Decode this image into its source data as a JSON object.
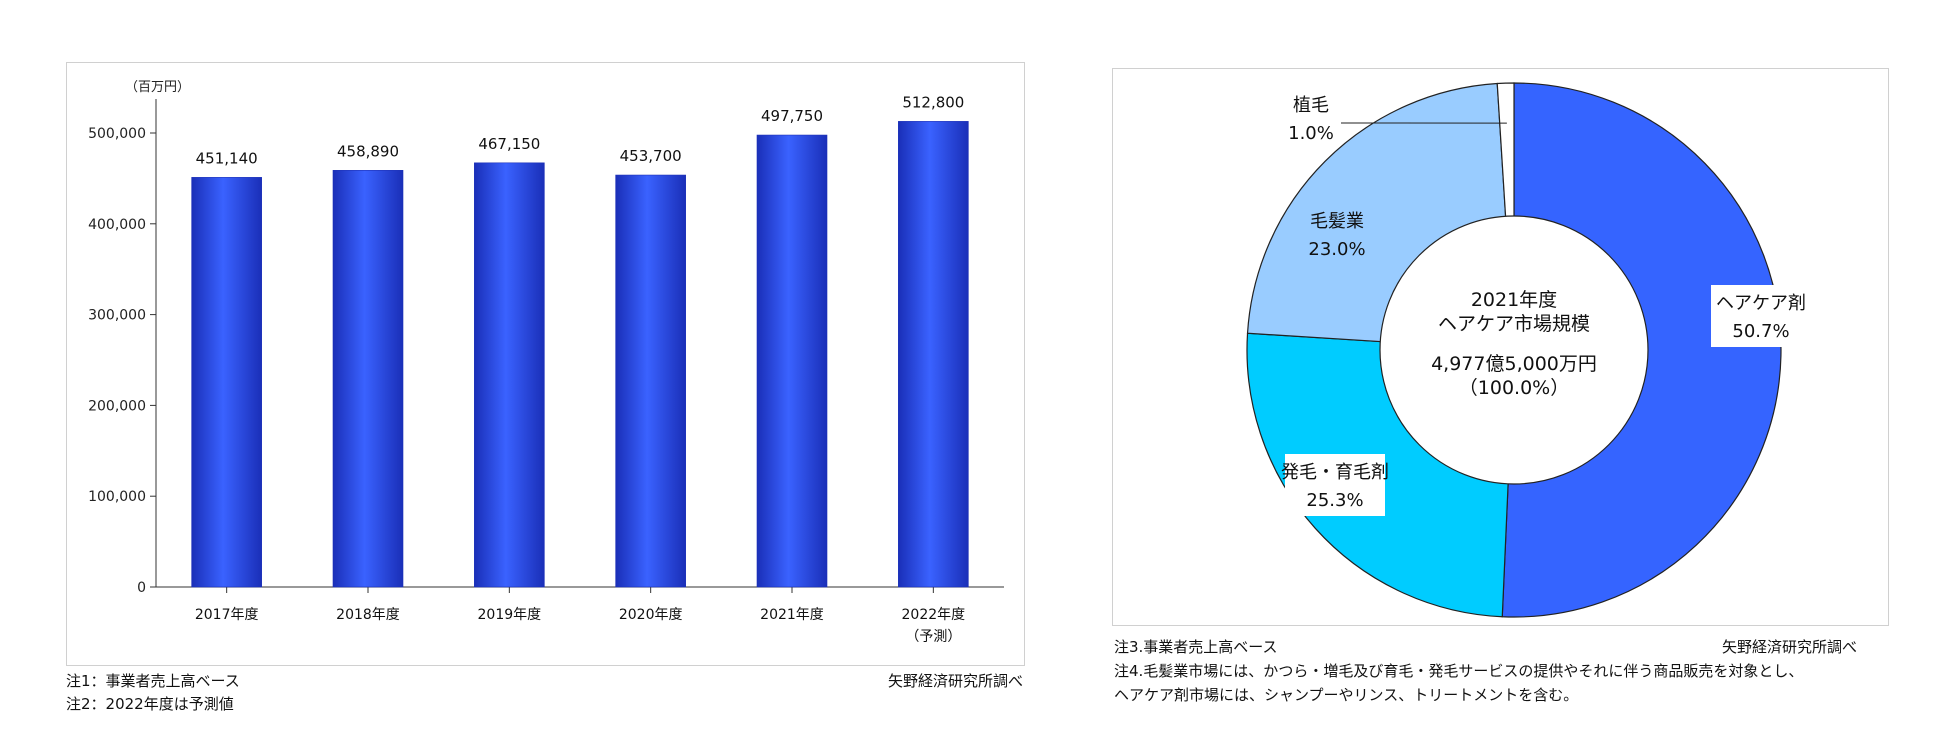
{
  "chart_data": [
    {
      "type": "bar",
      "unit_label": "（百万円）",
      "categories": [
        "2017年度",
        "2018年度",
        "2019年度",
        "2020年度",
        "2021年度",
        "2022年度"
      ],
      "category_sublabels": [
        "",
        "",
        "",
        "",
        "",
        "（予測）"
      ],
      "values": [
        451140,
        458890,
        467150,
        453700,
        497750,
        512800
      ],
      "value_labels": [
        "451,140",
        "458,890",
        "467,150",
        "453,700",
        "497,750",
        "512,800"
      ],
      "ylim": [
        0,
        500000
      ],
      "yticks": [
        0,
        100000,
        200000,
        300000,
        400000,
        500000
      ],
      "ytick_labels": [
        "0",
        "100,000",
        "200,000",
        "300,000",
        "400,000",
        "500,000"
      ],
      "bar_color": "#2f52f0",
      "grid": false
    },
    {
      "type": "pie",
      "donut": true,
      "center_text": [
        "2021年度",
        "ヘアケア市場規模",
        "4,977億5,000万円",
        "（100.0%）"
      ],
      "slices": [
        {
          "name": "ヘアケア剤",
          "value": 50.7,
          "label": "50.7%",
          "color": "#3564ff"
        },
        {
          "name": "発毛・育毛剤",
          "value": 25.3,
          "label": "25.3%",
          "color": "#00ccff"
        },
        {
          "name": "毛髪業",
          "value": 23.0,
          "label": "23.0%",
          "color": "#99ccff"
        },
        {
          "name": "植毛",
          "value": 1.0,
          "label": "1.0%",
          "color": "#ffffff"
        }
      ]
    }
  ],
  "notes_left": {
    "note1": "注1：事業者売上高ベース",
    "note2": "注2：2022年度は予測値",
    "source": "矢野経済研究所調べ"
  },
  "notes_right": {
    "note3": "注3.事業者売上高ベース",
    "note4": "注4.毛髪業市場には、かつら・増毛及び育毛・発毛サービスの提供やそれに伴う商品販売を対象とし、",
    "note4b": "ヘアケア剤市場には、シャンプーやリンス、トリートメントを含む。",
    "source": "矢野経済研究所調べ"
  }
}
